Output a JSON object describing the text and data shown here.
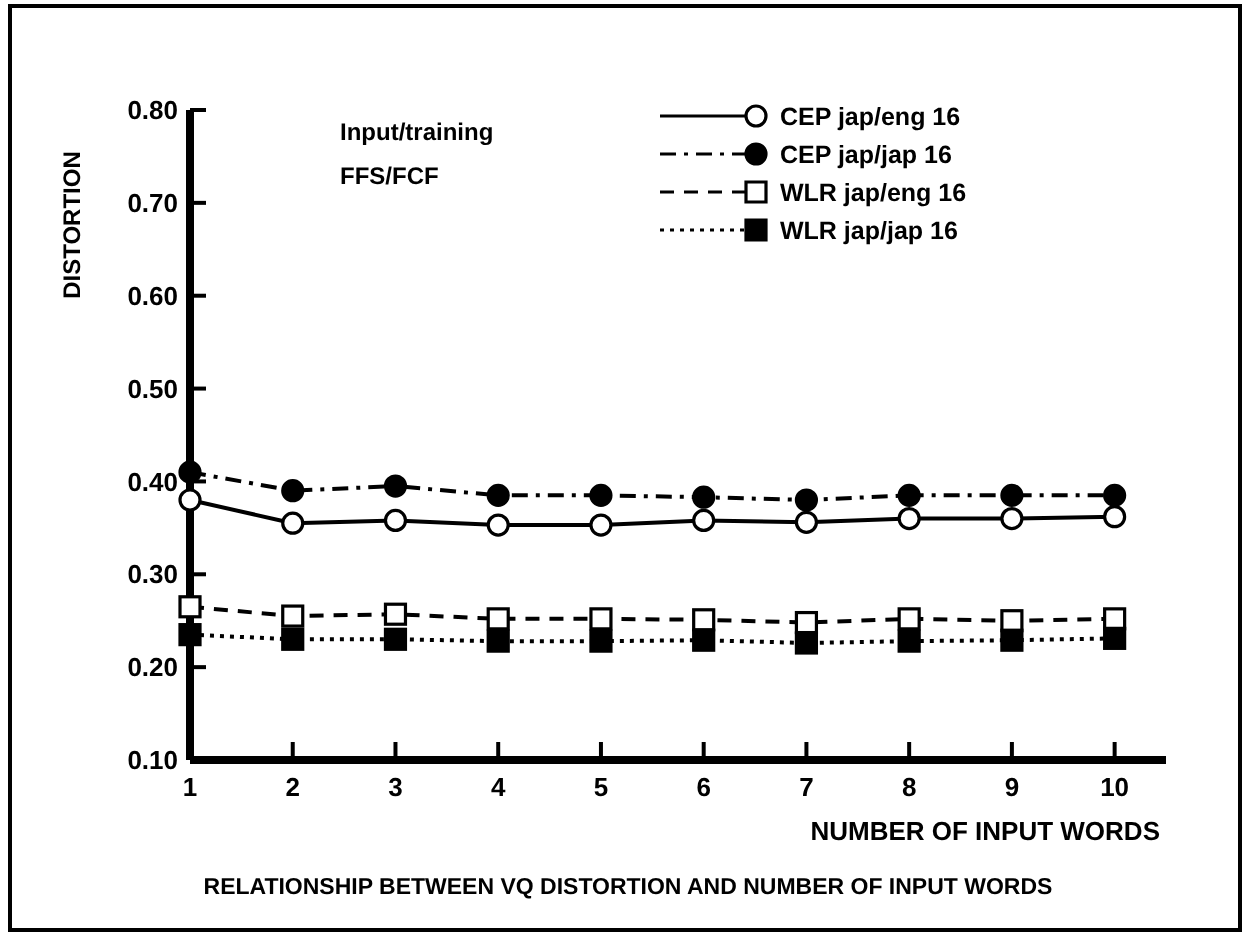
{
  "chart_data": {
    "type": "line",
    "title": "RELATIONSHIP BETWEEN VQ DISTORTION AND NUMBER OF INPUT WORDS",
    "xlabel": "NUMBER OF INPUT WORDS",
    "ylabel": "DISTORTION",
    "annotations": [
      "Input/training",
      "FFS/FCF"
    ],
    "x": [
      1,
      2,
      3,
      4,
      5,
      6,
      7,
      8,
      9,
      10
    ],
    "series": [
      {
        "name": "CEP jap/eng 16",
        "color": "#000000",
        "marker": "circle",
        "line_style": "solid",
        "values": [
          0.38,
          0.355,
          0.358,
          0.353,
          0.353,
          0.358,
          0.356,
          0.36,
          0.36,
          0.362
        ]
      },
      {
        "name": "CEP jap/jap 16",
        "color": "#000000",
        "marker": "circle",
        "line_style": "dashdot",
        "values": [
          0.41,
          0.39,
          0.395,
          0.385,
          0.385,
          0.383,
          0.38,
          0.385,
          0.385,
          0.385
        ]
      },
      {
        "name": "WLR jap/eng 16",
        "color": "#000000",
        "marker": "square",
        "line_style": "dashed",
        "values": [
          0.265,
          0.255,
          0.257,
          0.252,
          0.252,
          0.251,
          0.248,
          0.252,
          0.25,
          0.252
        ]
      },
      {
        "name": "WLR jap/jap 16",
        "color": "#000000",
        "marker": "square",
        "line_style": "dotted",
        "values": [
          0.235,
          0.23,
          0.23,
          0.228,
          0.228,
          0.229,
          0.226,
          0.228,
          0.229,
          0.231
        ]
      }
    ],
    "xlim": [
      1,
      10.5
    ],
    "xticks": [
      1,
      2,
      3,
      4,
      5,
      6,
      7,
      8,
      9,
      10
    ],
    "ylim": [
      0.1,
      0.8
    ],
    "yticks": [
      {
        "value": 0.1,
        "label": "0.10"
      },
      {
        "value": 0.2,
        "label": "0.20"
      },
      {
        "value": 0.3,
        "label": "0.30"
      },
      {
        "value": 0.4,
        "label": "0.40"
      },
      {
        "value": 0.5,
        "label": "0.50"
      },
      {
        "value": 0.6,
        "label": "0.60"
      },
      {
        "value": 0.7,
        "label": "0.70"
      },
      {
        "value": 0.8,
        "label": "0.80"
      }
    ],
    "grid": false,
    "legend": "top right"
  }
}
